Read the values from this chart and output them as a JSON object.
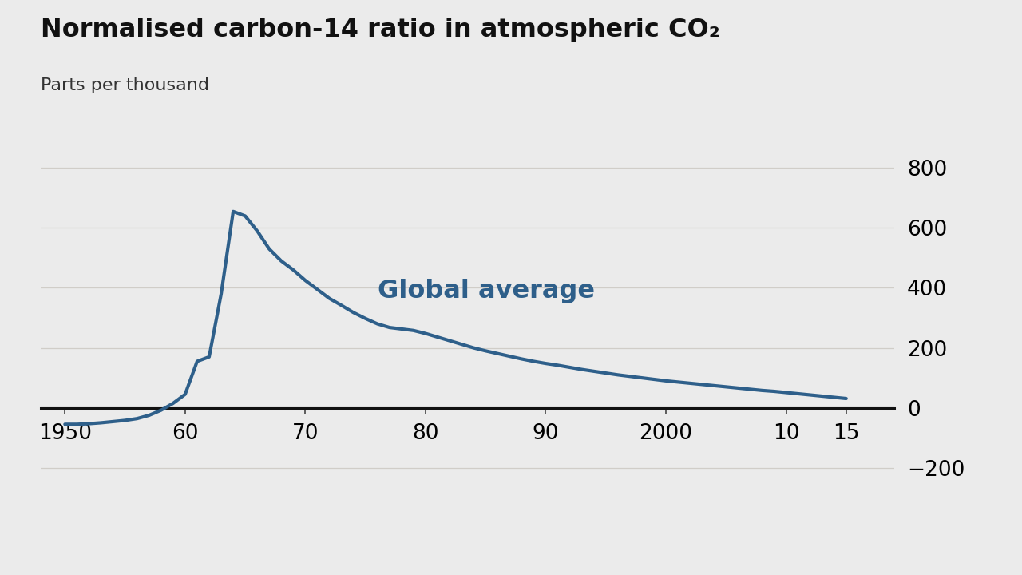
{
  "title": "Normalised carbon-14 ratio in atmospheric CO₂",
  "subtitle": "Parts per thousand",
  "line_color": "#2e5f8a",
  "label_text": "Global average",
  "label_color": "#2e5f8a",
  "background_color": "#ebebeb",
  "ylim": [
    -270,
    900
  ],
  "yticks": [
    -200,
    0,
    200,
    400,
    600,
    800
  ],
  "x_data": [
    1950,
    1951,
    1952,
    1953,
    1954,
    1955,
    1956,
    1957,
    1958,
    1959,
    1960,
    1961,
    1962,
    1963,
    1964,
    1965,
    1966,
    1967,
    1968,
    1969,
    1970,
    1971,
    1972,
    1973,
    1974,
    1975,
    1976,
    1977,
    1978,
    1979,
    1980,
    1981,
    1982,
    1983,
    1984,
    1985,
    1986,
    1987,
    1988,
    1989,
    1990,
    1991,
    1992,
    1993,
    1994,
    1995,
    1996,
    1997,
    1998,
    1999,
    2000,
    2001,
    2002,
    2003,
    2004,
    2005,
    2006,
    2007,
    2008,
    2009,
    2010,
    2011,
    2012,
    2013,
    2014,
    2015
  ],
  "y_data": [
    -55,
    -55,
    -53,
    -50,
    -46,
    -42,
    -36,
    -25,
    -8,
    15,
    45,
    155,
    170,
    380,
    655,
    640,
    590,
    530,
    490,
    460,
    425,
    395,
    365,
    342,
    318,
    298,
    280,
    268,
    263,
    258,
    248,
    236,
    224,
    212,
    200,
    190,
    181,
    172,
    163,
    155,
    148,
    142,
    135,
    128,
    122,
    116,
    110,
    105,
    100,
    95,
    90,
    86,
    82,
    78,
    74,
    70,
    66,
    62,
    58,
    55,
    51,
    47,
    43,
    39,
    35,
    31
  ],
  "xtick_positions": [
    1950,
    1960,
    1970,
    1980,
    1990,
    2000,
    2010,
    2015
  ],
  "xtick_labels": [
    "1950",
    "60",
    "70",
    "80",
    "90",
    "2000",
    "10",
    "15"
  ],
  "title_fontsize": 23,
  "subtitle_fontsize": 16,
  "tick_fontsize": 19,
  "label_fontsize": 23,
  "line_width": 3.0,
  "grid_color": "#d0cdc8",
  "zero_line_color": "#111111"
}
